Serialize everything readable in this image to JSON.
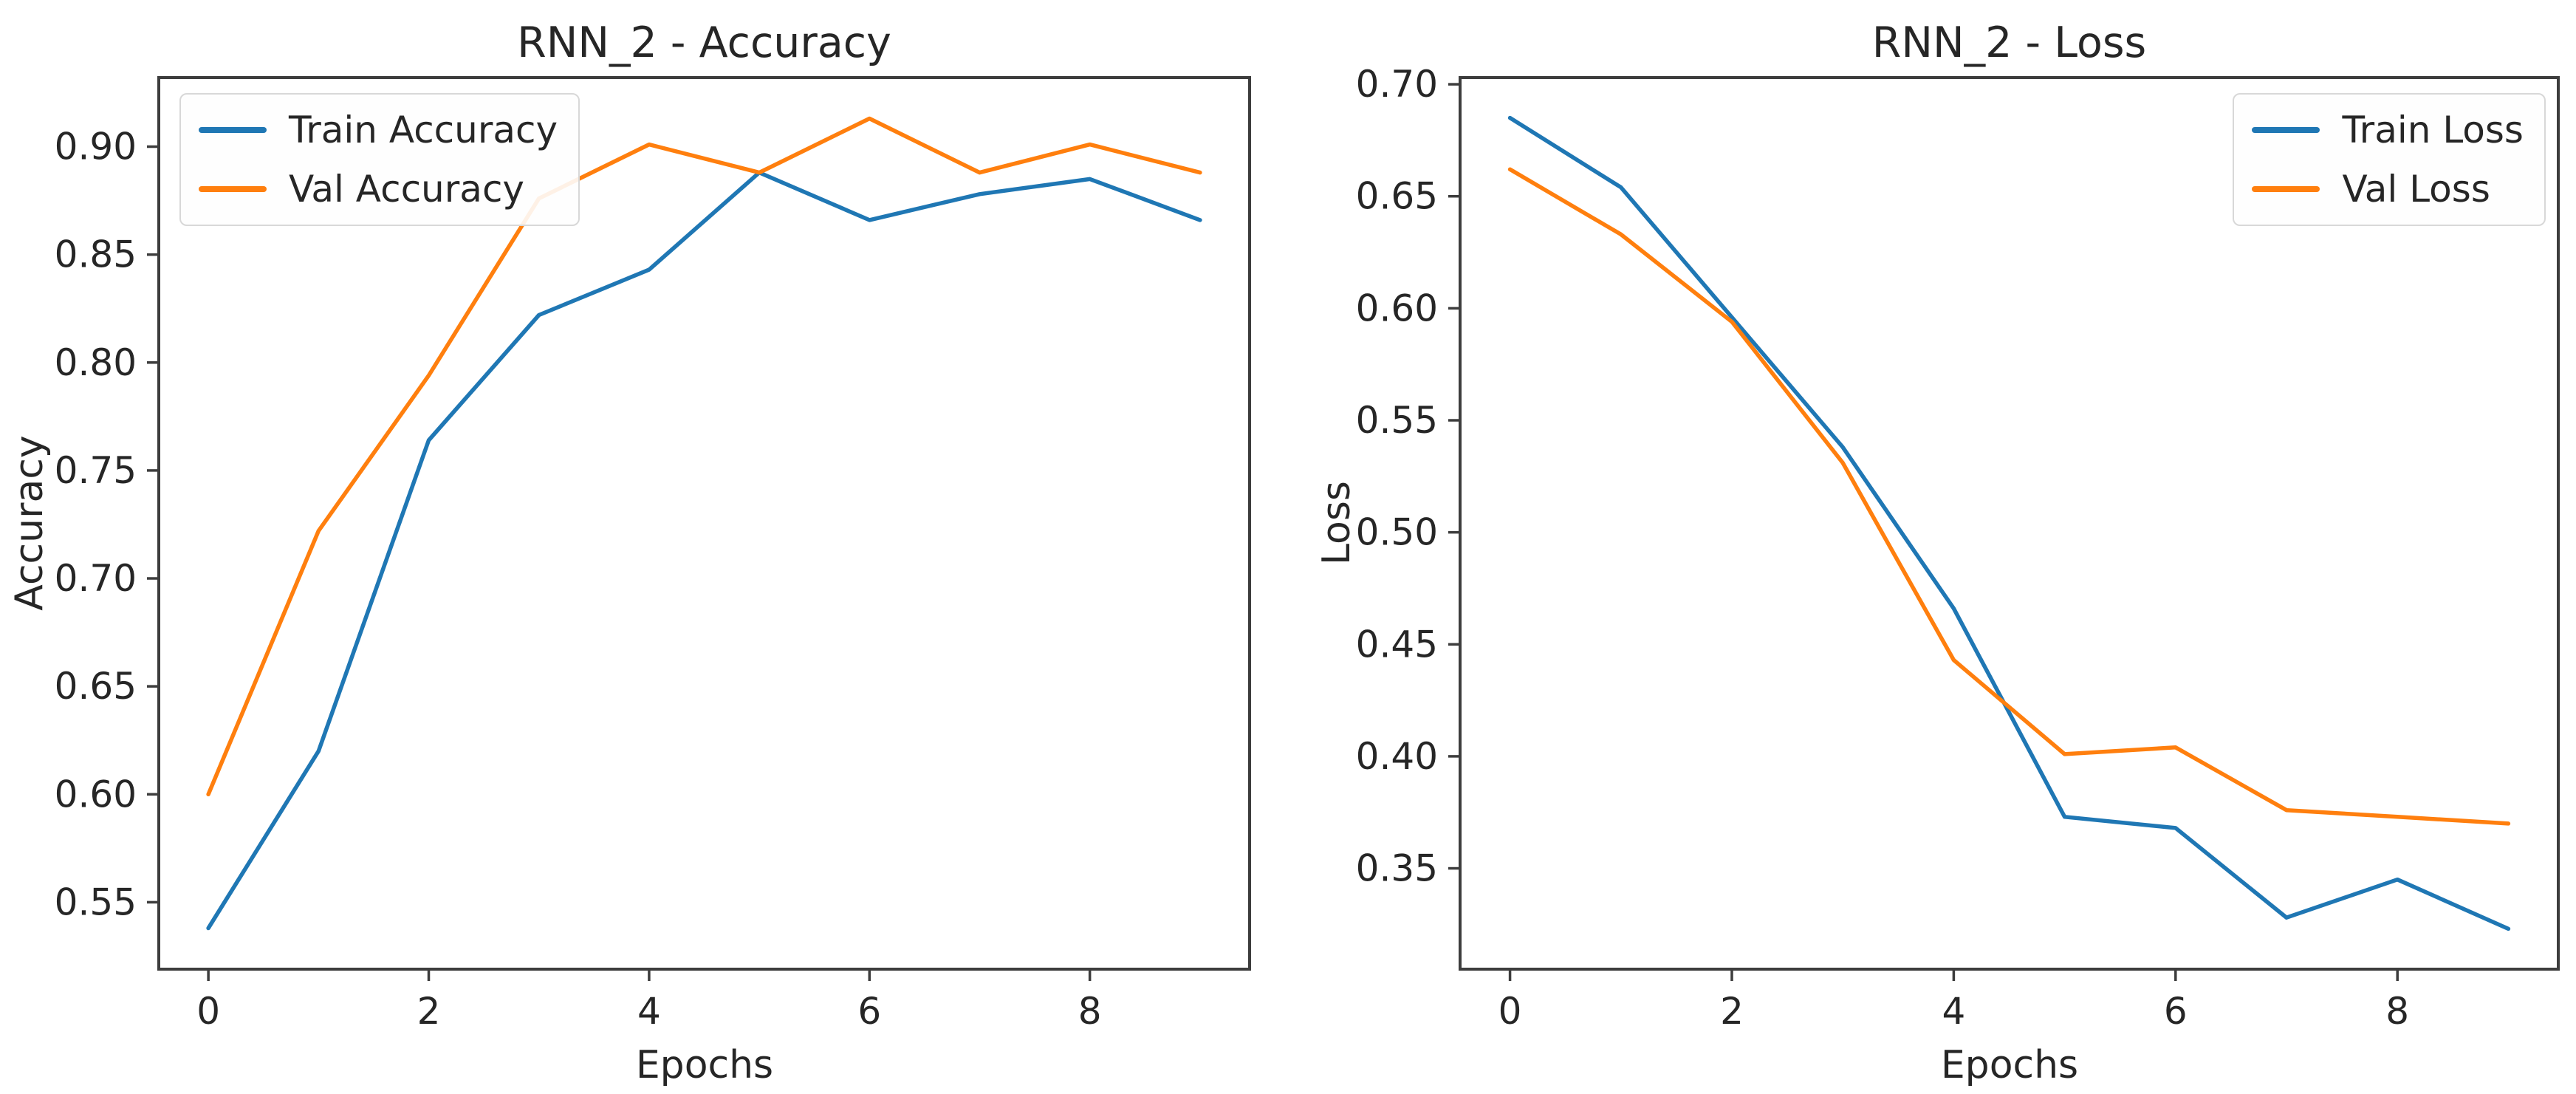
{
  "figure": {
    "background": "#ffffff"
  },
  "colors": {
    "train": "#1f77b4",
    "val": "#ff7f0e",
    "spine": "#3d3d3d",
    "text": "#262626",
    "legend_border": "#d8d8d8"
  },
  "chart_data": [
    {
      "id": "accuracy",
      "type": "line",
      "title": "RNN_2 - Accuracy",
      "xlabel": "Epochs",
      "ylabel": "Accuracy",
      "x": [
        0,
        1,
        2,
        3,
        4,
        5,
        6,
        7,
        8,
        9
      ],
      "xticks": [
        0,
        2,
        4,
        6,
        8
      ],
      "yticks": [
        0.55,
        0.6,
        0.65,
        0.7,
        0.75,
        0.8,
        0.85,
        0.9
      ],
      "ytick_decimals": 2,
      "xlim": [
        -0.45,
        9.45
      ],
      "ylim": [
        0.519,
        0.932
      ],
      "grid": false,
      "legend_position": "top-left",
      "series": [
        {
          "name": "Train Accuracy",
          "color_key": "train",
          "values": [
            0.538,
            0.62,
            0.764,
            0.822,
            0.843,
            0.888,
            0.866,
            0.878,
            0.885,
            0.866
          ]
        },
        {
          "name": "Val Accuracy",
          "color_key": "val",
          "values": [
            0.6,
            0.722,
            0.794,
            0.876,
            0.901,
            0.888,
            0.913,
            0.888,
            0.901,
            0.888
          ]
        }
      ]
    },
    {
      "id": "loss",
      "type": "line",
      "title": "RNN_2 - Loss",
      "xlabel": "Epochs",
      "ylabel": "Loss",
      "x": [
        0,
        1,
        2,
        3,
        4,
        5,
        6,
        7,
        8,
        9
      ],
      "xticks": [
        0,
        2,
        4,
        6,
        8
      ],
      "yticks": [
        0.35,
        0.4,
        0.45,
        0.5,
        0.55,
        0.6,
        0.65,
        0.7
      ],
      "ytick_decimals": 2,
      "xlim": [
        -0.45,
        9.45
      ],
      "ylim": [
        0.305,
        0.703
      ],
      "grid": false,
      "legend_position": "top-right",
      "series": [
        {
          "name": "Train Loss",
          "color_key": "train",
          "values": [
            0.685,
            0.654,
            0.596,
            0.538,
            0.466,
            0.373,
            0.368,
            0.328,
            0.345,
            0.323
          ]
        },
        {
          "name": "Val Loss",
          "color_key": "val",
          "values": [
            0.662,
            0.633,
            0.594,
            0.531,
            0.443,
            0.401,
            0.404,
            0.376,
            0.373,
            0.37
          ]
        }
      ]
    }
  ]
}
